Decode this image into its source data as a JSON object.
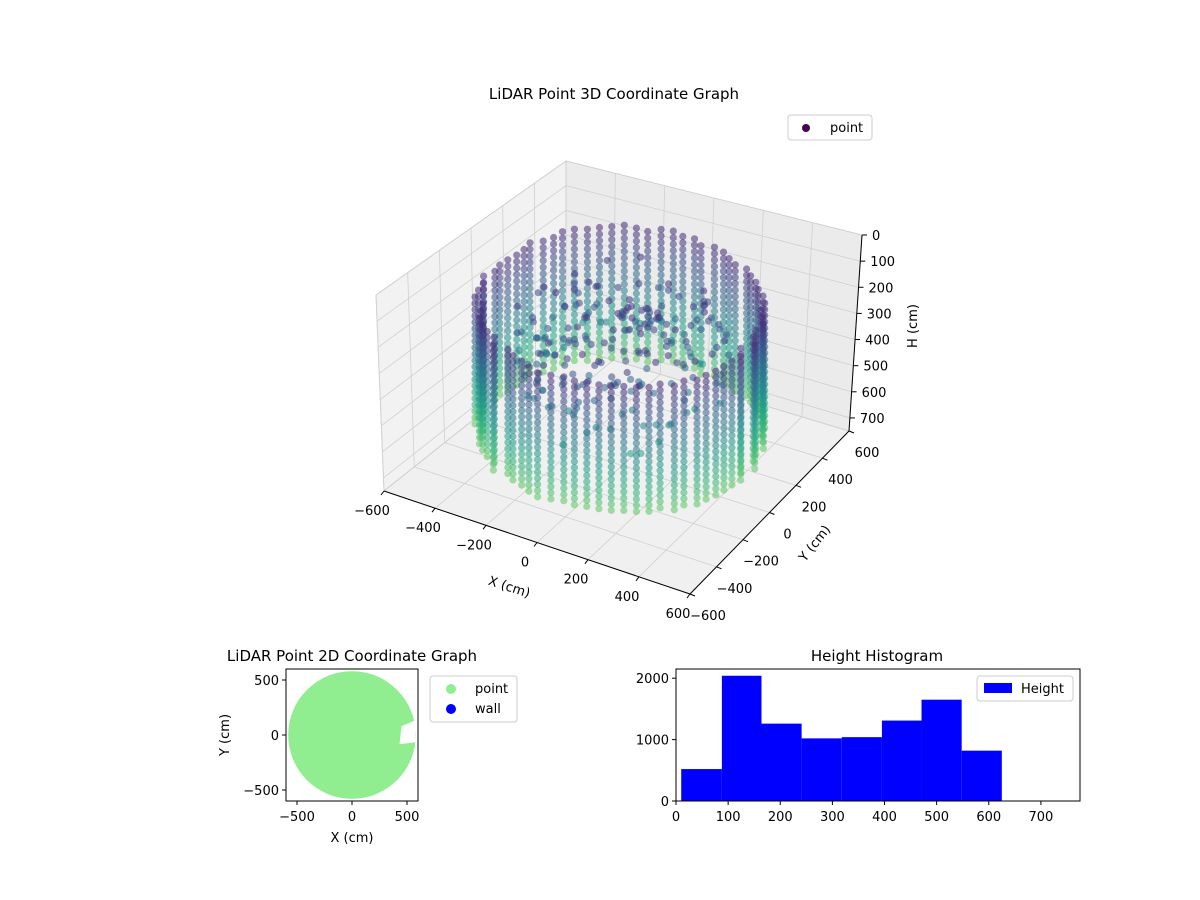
{
  "chart_data": [
    {
      "type": "scatter",
      "projection": "3d",
      "title": "LiDAR Point 3D Coordinate Graph",
      "xlabel": "X (cm)",
      "ylabel": "Y (cm)",
      "zlabel": "H (cm)",
      "xlim": [
        -600,
        600
      ],
      "ylim": [
        -600,
        600
      ],
      "zlim": [
        0,
        750
      ],
      "z_inverted": true,
      "x_ticks": [
        -600,
        -400,
        -200,
        0,
        200,
        400,
        600
      ],
      "y_ticks": [
        -600,
        -400,
        -200,
        0,
        200,
        400,
        600
      ],
      "z_ticks": [
        0,
        100,
        200,
        300,
        400,
        500,
        600,
        700
      ],
      "colormap": "viridis",
      "legend": [
        {
          "label": "point",
          "color": "#440154"
        }
      ],
      "legend_position": "top-right",
      "grid": true,
      "series": [
        {
          "name": "point",
          "shape": "cylindrical wall scan",
          "radius": 520,
          "h_range": [
            100,
            620
          ],
          "column_count": 72
        }
      ]
    },
    {
      "type": "scatter",
      "title": "LiDAR Point 2D Coordinate Graph",
      "xlabel": "X (cm)",
      "ylabel": "Y (cm)",
      "xlim": [
        -600,
        600
      ],
      "ylim": [
        -600,
        600
      ],
      "x_ticks": [
        -500,
        0,
        500
      ],
      "y_ticks": [
        -500,
        0,
        500
      ],
      "legend": [
        {
          "label": "point",
          "color": "#90ee90"
        },
        {
          "label": "wall",
          "color": "#0000ff"
        }
      ],
      "legend_position": "outside-right",
      "series": [
        {
          "name": "point",
          "color": "#90ee90",
          "shape": "filled disk",
          "radius": 580
        }
      ]
    },
    {
      "type": "bar",
      "histogram": true,
      "title": "Height Histogram",
      "xlim": [
        0,
        775
      ],
      "ylim": [
        0,
        2150
      ],
      "x_ticks": [
        0,
        100,
        200,
        300,
        400,
        500,
        600,
        700
      ],
      "y_ticks": [
        0,
        1000,
        2000
      ],
      "legend": [
        {
          "label": "Height",
          "color": "#0000ff"
        }
      ],
      "legend_position": "top-right",
      "bin_edges": [
        10,
        88,
        164,
        241,
        318,
        395,
        471,
        548,
        625
      ],
      "counts": [
        520,
        2040,
        1260,
        1020,
        1040,
        1310,
        1650,
        820
      ],
      "color": "#0000ff"
    }
  ]
}
